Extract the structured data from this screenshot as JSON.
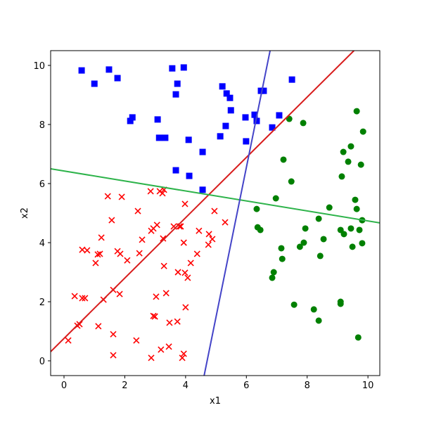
{
  "chart_data": {
    "type": "scatter",
    "xlabel": "x1",
    "ylabel": "x2",
    "xlim": [
      -0.44,
      10.39
    ],
    "ylim": [
      -0.5,
      10.5
    ],
    "xticks": [
      0,
      2,
      4,
      6,
      8,
      10
    ],
    "yticks": [
      0,
      2,
      4,
      6,
      8,
      10
    ],
    "series": [
      {
        "marker": "square",
        "color": "#0000ff",
        "x": [
          0.58,
          1.0,
          1.48,
          1.76,
          2.18,
          2.25,
          3.08,
          3.13,
          3.33,
          3.56,
          3.68,
          3.73,
          3.94,
          3.68,
          4.1,
          4.12,
          4.56,
          4.56,
          5.21,
          5.35,
          5.46,
          5.49,
          5.32,
          5.14,
          5.97,
          5.99,
          6.27,
          6.34,
          6.48,
          6.57,
          6.85,
          7.08,
          7.5
        ],
        "values": [
          9.83,
          9.38,
          9.86,
          9.57,
          8.12,
          8.24,
          8.17,
          7.55,
          7.55,
          9.9,
          9.02,
          9.38,
          9.93,
          6.45,
          7.48,
          6.26,
          7.07,
          5.79,
          9.29,
          9.05,
          8.9,
          8.48,
          7.95,
          7.6,
          8.24,
          7.43,
          8.33,
          8.12,
          9.14,
          9.14,
          7.9,
          8.31,
          9.52
        ]
      },
      {
        "marker": "x",
        "color": "#ff0000",
        "x": [
          0.14,
          0.35,
          0.44,
          0.51,
          0.6,
          0.69,
          0.6,
          0.76,
          1.04,
          1.11,
          1.18,
          1.23,
          1.13,
          1.3,
          1.44,
          1.57,
          1.62,
          1.62,
          1.62,
          1.76,
          1.83,
          1.85,
          1.9,
          2.08,
          2.38,
          2.43,
          2.48,
          2.57,
          2.85,
          2.87,
          2.87,
          2.94,
          2.94,
          2.99,
          3.03,
          3.06,
          3.15,
          3.19,
          3.24,
          3.26,
          3.29,
          3.29,
          3.36,
          3.45,
          3.47,
          3.61,
          3.73,
          3.75,
          3.8,
          3.84,
          3.89,
          3.94,
          3.94,
          4.0,
          3.98,
          3.98,
          4.07,
          4.17,
          4.38,
          4.44,
          4.77,
          4.75,
          4.88,
          4.95,
          5.3
        ],
        "values": [
          0.69,
          2.19,
          1.19,
          1.24,
          2.12,
          2.12,
          3.76,
          3.74,
          3.31,
          3.6,
          3.62,
          4.17,
          1.17,
          2.07,
          5.57,
          4.76,
          2.4,
          0.9,
          0.19,
          3.71,
          2.26,
          3.62,
          5.55,
          3.4,
          0.69,
          5.07,
          3.64,
          4.1,
          5.74,
          0.1,
          4.4,
          4.48,
          1.52,
          1.5,
          2.17,
          4.6,
          5.74,
          0.38,
          5.67,
          4.14,
          5.79,
          3.21,
          2.29,
          0.48,
          1.29,
          4.55,
          1.33,
          3.0,
          4.55,
          4.55,
          0.1,
          0.24,
          4.0,
          1.81,
          5.31,
          2.98,
          2.81,
          3.31,
          3.62,
          4.4,
          4.29,
          3.93,
          4.12,
          5.07,
          4.69
        ]
      },
      {
        "marker": "circle",
        "color": "#008000",
        "x": [
          6.34,
          6.37,
          6.46,
          6.9,
          6.85,
          6.97,
          7.15,
          7.18,
          7.22,
          7.41,
          7.48,
          7.57,
          7.76,
          7.87,
          7.89,
          7.94,
          8.22,
          8.38,
          8.38,
          8.43,
          8.54,
          8.73,
          9.1,
          9.14,
          9.19,
          9.21,
          9.1,
          9.1,
          9.35,
          9.44,
          9.44,
          9.49,
          9.58,
          9.63,
          9.63,
          9.68,
          9.72,
          9.77,
          9.81,
          9.81,
          9.84
        ],
        "values": [
          5.14,
          4.52,
          4.43,
          3.0,
          2.81,
          5.5,
          3.81,
          3.45,
          6.81,
          8.19,
          6.07,
          1.9,
          3.86,
          8.05,
          4.0,
          4.48,
          1.74,
          4.81,
          1.36,
          3.55,
          4.12,
          5.19,
          4.43,
          6.24,
          7.07,
          4.29,
          1.93,
          2.0,
          6.74,
          7.26,
          4.48,
          3.86,
          5.45,
          5.14,
          8.45,
          0.79,
          4.43,
          6.64,
          4.76,
          3.98,
          7.76
        ]
      },
      {
        "type": "line",
        "color": "#d81c1c",
        "x": [
          -0.44,
          9.54
        ],
        "values": [
          0.31,
          10.5
        ]
      },
      {
        "type": "line",
        "color": "#2db34a",
        "x": [
          -0.44,
          10.39
        ],
        "values": [
          6.5,
          4.67
        ]
      },
      {
        "type": "line",
        "color": "#4444c8",
        "x": [
          4.61,
          6.78
        ],
        "values": [
          -0.5,
          10.5
        ]
      }
    ]
  }
}
